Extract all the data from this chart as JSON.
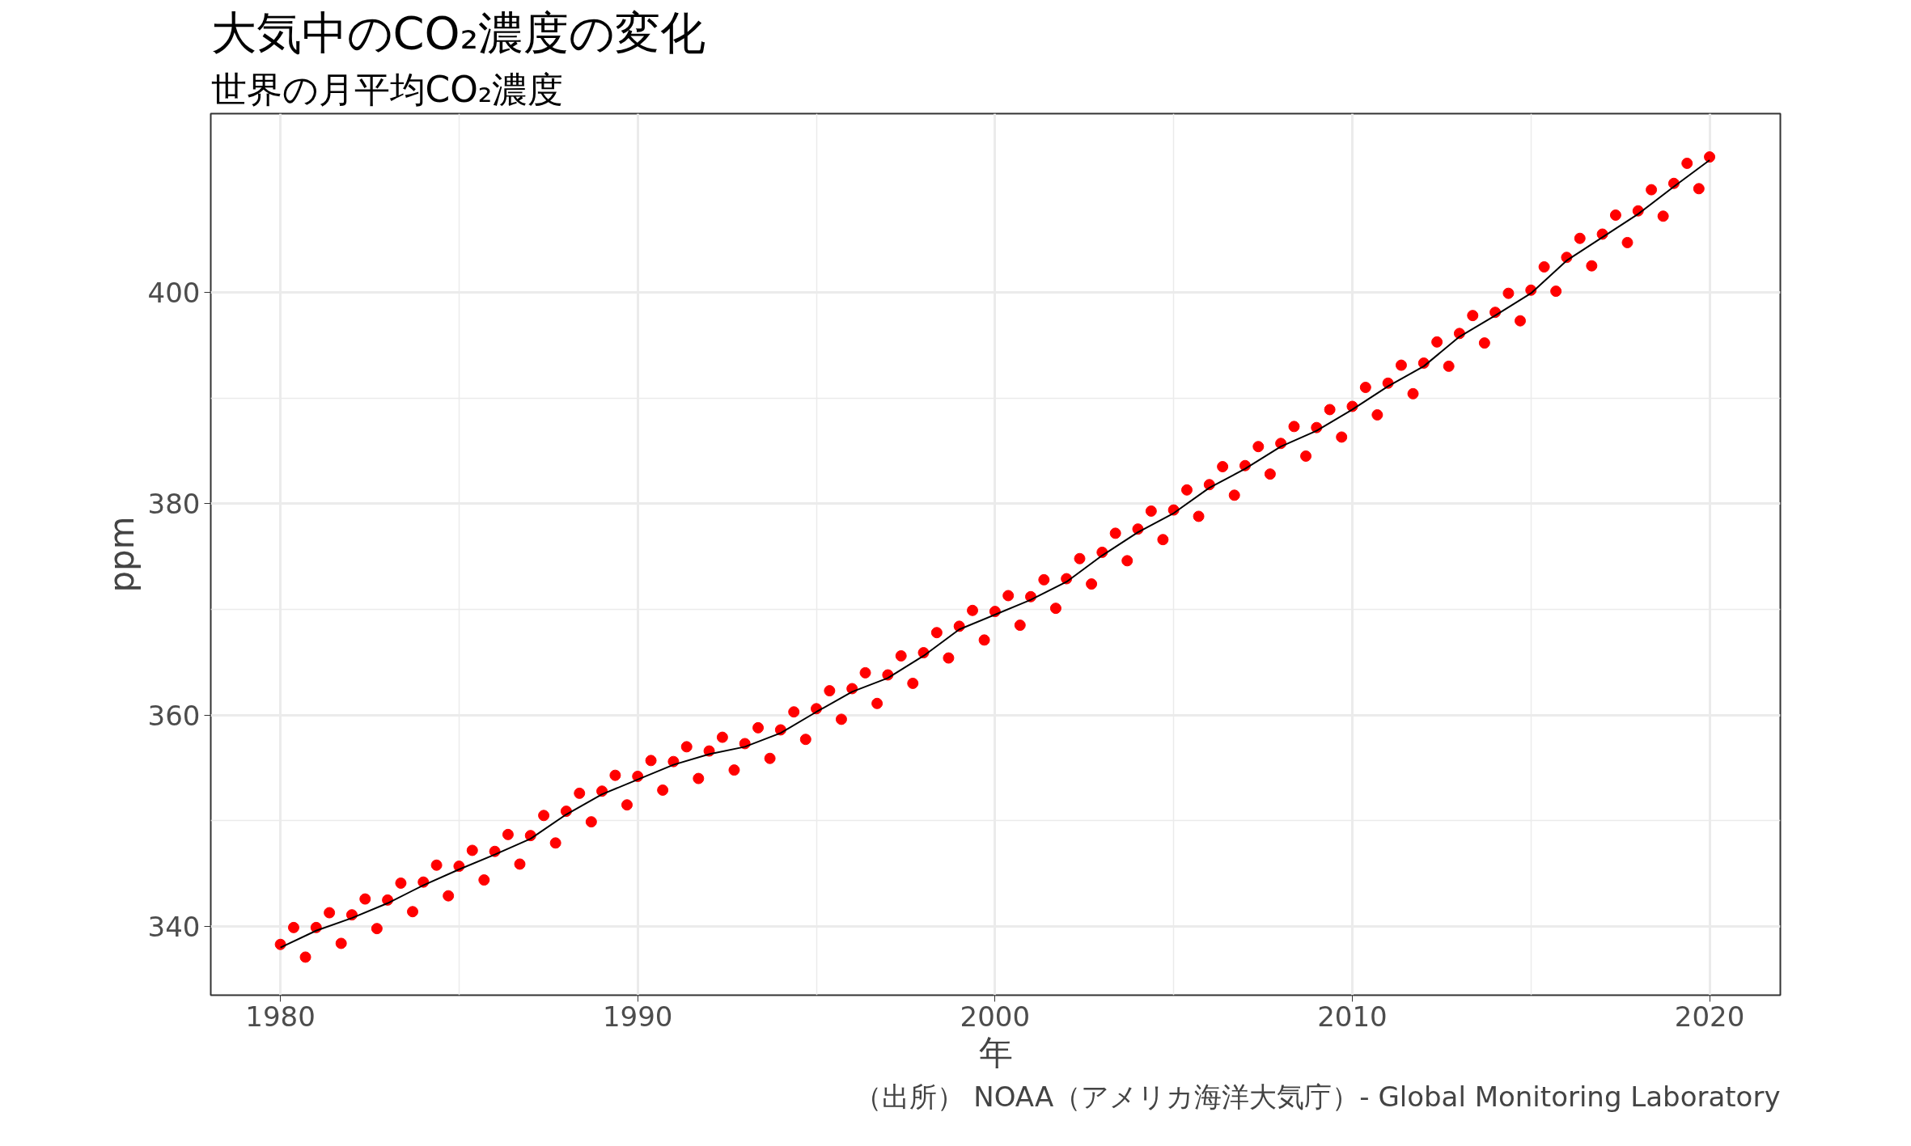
{
  "chart_data": {
    "type": "scatter",
    "title": "大気中のCO₂濃度の変化",
    "subtitle": "世界の月平均CO₂濃度",
    "xlabel": "年",
    "ylabel": "ppm",
    "annotations": [
      "（出所） NOAA（アメリカ海洋大気庁）- Global Monitoring Laboratory"
    ],
    "xlim": [
      1978.05,
      2021.98
    ],
    "ylim": [
      333.5,
      416.9
    ],
    "xticks": [
      1980,
      1990,
      2000,
      2010,
      2020
    ],
    "yticks": [
      340,
      360,
      380,
      400
    ],
    "grid": true,
    "marker": "circle",
    "series": [
      {
        "color": "#ff0000",
        "x": [
          1980.0,
          1980.37,
          1980.7,
          1981.0,
          1981.37,
          1981.7,
          1982.0,
          1982.37,
          1982.7,
          1983.0,
          1983.37,
          1983.7,
          1984.0,
          1984.37,
          1984.7,
          1985.0,
          1985.37,
          1985.7,
          1986.0,
          1986.37,
          1986.7,
          1987.0,
          1987.37,
          1987.7,
          1988.0,
          1988.37,
          1988.7,
          1989.0,
          1989.37,
          1989.7,
          1990.0,
          1990.37,
          1990.7,
          1991.0,
          1991.37,
          1991.7,
          1992.0,
          1992.37,
          1992.7,
          1993.0,
          1993.37,
          1993.7,
          1994.0,
          1994.37,
          1994.7,
          1995.0,
          1995.37,
          1995.7,
          1996.0,
          1996.37,
          1996.7,
          1997.0,
          1997.37,
          1997.7,
          1998.0,
          1998.37,
          1998.7,
          1999.0,
          1999.37,
          1999.7,
          2000.0,
          2000.37,
          2000.7,
          2001.0,
          2001.37,
          2001.7,
          2002.0,
          2002.37,
          2002.7,
          2003.0,
          2003.37,
          2003.7,
          2004.0,
          2004.37,
          2004.7,
          2005.0,
          2005.37,
          2005.7,
          2006.0,
          2006.37,
          2006.7,
          2007.0,
          2007.37,
          2007.7,
          2008.0,
          2008.37,
          2008.7,
          2009.0,
          2009.37,
          2009.7,
          2010.0,
          2010.37,
          2010.7,
          2011.0,
          2011.37,
          2011.7,
          2012.0,
          2012.37,
          2012.7,
          2013.0,
          2013.37,
          2013.7,
          2014.0,
          2014.37,
          2014.7,
          2015.0,
          2015.37,
          2015.7,
          2016.0,
          2016.37,
          2016.7,
          2017.0,
          2017.37,
          2017.7,
          2018.0,
          2018.37,
          2018.7,
          2019.0,
          2019.37,
          2019.7,
          2020.0
        ],
        "values": [
          338.3,
          339.9,
          337.1,
          339.9,
          341.3,
          338.4,
          341.1,
          342.6,
          339.8,
          342.5,
          344.1,
          341.4,
          344.2,
          345.8,
          342.9,
          345.7,
          347.2,
          344.4,
          347.1,
          348.7,
          345.9,
          348.6,
          350.5,
          347.9,
          350.9,
          352.6,
          349.9,
          352.8,
          354.3,
          351.5,
          354.2,
          355.7,
          352.9,
          355.6,
          357.0,
          354.0,
          356.6,
          357.9,
          354.8,
          357.3,
          358.8,
          355.9,
          358.6,
          360.3,
          357.7,
          360.6,
          362.3,
          359.6,
          362.5,
          364.0,
          361.1,
          363.8,
          365.6,
          363.0,
          365.9,
          367.8,
          365.4,
          368.4,
          369.9,
          367.1,
          369.8,
          371.3,
          368.5,
          371.2,
          372.8,
          370.1,
          372.9,
          374.8,
          372.4,
          375.4,
          377.2,
          374.6,
          377.6,
          379.3,
          376.6,
          379.4,
          381.3,
          378.8,
          381.8,
          383.5,
          380.8,
          383.6,
          385.4,
          382.8,
          385.7,
          387.3,
          384.5,
          387.2,
          388.9,
          386.3,
          389.2,
          391.0,
          388.4,
          391.4,
          393.1,
          390.4,
          393.3,
          395.3,
          393.0,
          396.1,
          397.8,
          395.2,
          398.1,
          399.9,
          397.3,
          400.2,
          402.4,
          400.1,
          403.3,
          405.1,
          402.5,
          405.5,
          407.3,
          404.7,
          407.7,
          409.7,
          407.2,
          410.3,
          412.2,
          409.8,
          412.8
        ]
      },
      {
        "type": "line",
        "marker": "none",
        "color": "#000000",
        "x": [
          1980,
          1981,
          1982,
          1983,
          1984,
          1985,
          1986,
          1987,
          1988,
          1989,
          1990,
          1991,
          1992,
          1993,
          1994,
          1995,
          1996,
          1997,
          1998,
          1999,
          2000,
          2001,
          2002,
          2003,
          2004,
          2005,
          2006,
          2007,
          2008,
          2009,
          2010,
          2011,
          2012,
          2013,
          2014,
          2015,
          2016,
          2017,
          2018,
          2019,
          2020
        ],
        "values": [
          338.0,
          339.6,
          340.8,
          342.2,
          343.9,
          345.4,
          346.8,
          348.3,
          350.6,
          352.5,
          353.9,
          355.3,
          356.3,
          357.0,
          358.3,
          360.3,
          362.2,
          363.5,
          365.6,
          368.1,
          369.5,
          370.9,
          372.6,
          375.1,
          377.3,
          379.1,
          381.5,
          383.3,
          385.4,
          386.9,
          388.9,
          391.1,
          393.0,
          395.8,
          397.8,
          399.9,
          403.0,
          405.2,
          407.4,
          410.0,
          412.5
        ]
      }
    ]
  }
}
